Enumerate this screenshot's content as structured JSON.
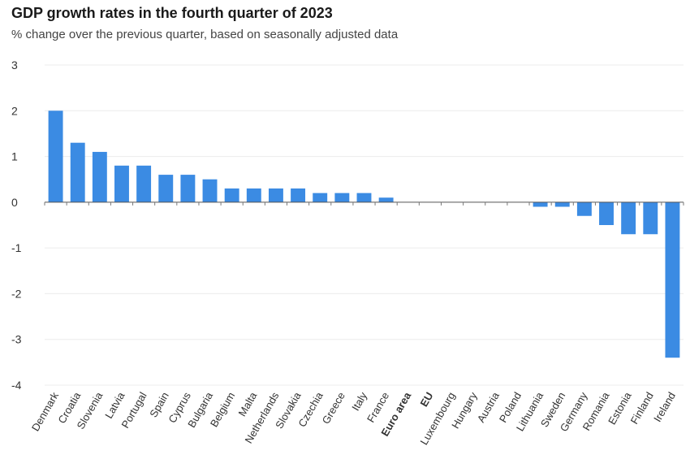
{
  "chart_data": {
    "type": "bar",
    "title": "GDP growth rates in the fourth quarter of 2023",
    "subtitle": "% change over the previous quarter, based on seasonally adjusted data",
    "xlabel": "",
    "ylabel": "",
    "ylim": [
      -4,
      3
    ],
    "yticks": [
      3,
      2,
      1,
      0,
      -1,
      -2,
      -3,
      -4
    ],
    "grid": true,
    "bar_color": "#3b8be3",
    "categories": [
      "Denmark",
      "Croatia",
      "Slovenia",
      "Latvia",
      "Portugal",
      "Spain",
      "Cyprus",
      "Bulgaria",
      "Belgium",
      "Malta",
      "Netherlands",
      "Slovakia",
      "Czechia",
      "Greece",
      "Italy",
      "France",
      "Euro area",
      "EU",
      "Luxembourg",
      "Hungary",
      "Austria",
      "Poland",
      "Lithuania",
      "Sweden",
      "Germany",
      "Romania",
      "Estonia",
      "Finland",
      "Ireland"
    ],
    "bold_categories": [
      "Euro area",
      "EU"
    ],
    "values": [
      2.0,
      1.3,
      1.1,
      0.8,
      0.8,
      0.6,
      0.6,
      0.5,
      0.3,
      0.3,
      0.3,
      0.3,
      0.2,
      0.2,
      0.2,
      0.1,
      0.0,
      0.0,
      0.0,
      0.0,
      0.0,
      0.0,
      -0.1,
      -0.1,
      -0.3,
      -0.5,
      -0.7,
      -0.7,
      -3.4
    ]
  }
}
